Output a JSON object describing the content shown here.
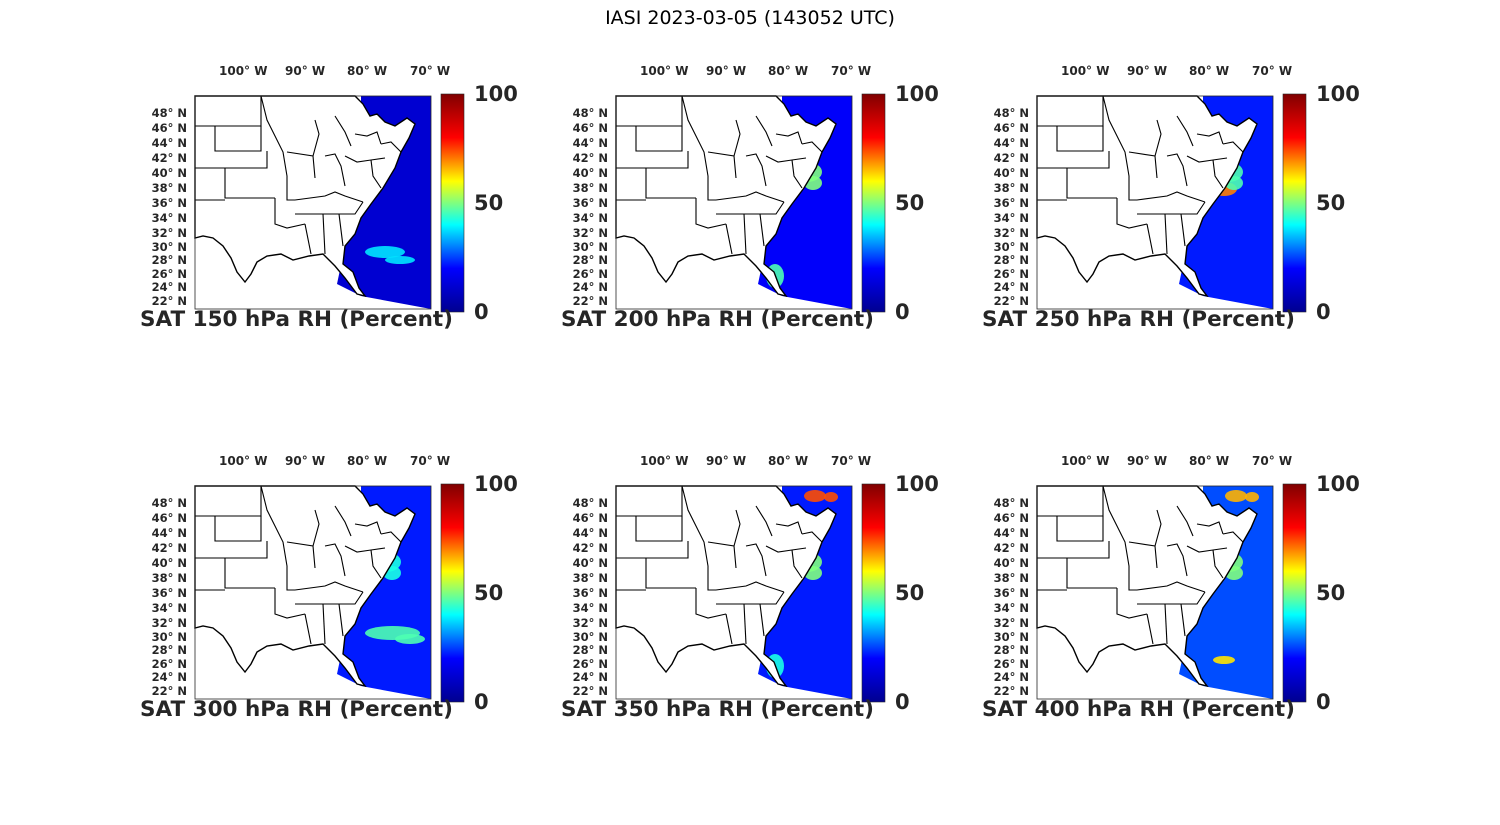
{
  "figure": {
    "title": "IASI 2023-03-05 (143052 UTC)",
    "lon_ticks": [
      "100° W",
      "90° W",
      "80° W",
      "70° W"
    ],
    "lat_ticks": [
      "48° N",
      "46° N",
      "44° N",
      "42° N",
      "40° N",
      "38° N",
      "36° N",
      "34° N",
      "32° N",
      "30° N",
      "28° N",
      "26° N",
      "24° N",
      "22° N"
    ],
    "colorbar": {
      "ticks": [
        "100",
        "50",
        "0"
      ],
      "range": [
        0,
        100
      ],
      "colormap": "jet",
      "colors": [
        "#00008f",
        "#0000ff",
        "#00ffff",
        "#ffff00",
        "#ff0000",
        "#800000"
      ]
    },
    "land_color": "#ffffff",
    "border_color": "#000000"
  },
  "panels": [
    {
      "caption": "SAT 150 hPa RH (Percent)",
      "level_hpa": 150,
      "dominant_rh_pct": 8,
      "moist_features": [
        {
          "region": "southeast coast offshore",
          "rh_pct": 35
        }
      ]
    },
    {
      "caption": "SAT 200 hPa RH (Percent)",
      "level_hpa": 200,
      "dominant_rh_pct": 12,
      "moist_features": [
        {
          "region": "mid-atlantic",
          "rh_pct": 50
        },
        {
          "region": "florida",
          "rh_pct": 45
        }
      ]
    },
    {
      "caption": "SAT 250 hPa RH (Percent)",
      "level_hpa": 250,
      "dominant_rh_pct": 15,
      "moist_features": [
        {
          "region": "virginia",
          "rh_pct": 75
        },
        {
          "region": "mid-atlantic",
          "rh_pct": 45
        }
      ]
    },
    {
      "caption": "SAT 300 hPa RH (Percent)",
      "level_hpa": 300,
      "dominant_rh_pct": 15,
      "moist_features": [
        {
          "region": "southeast offshore band",
          "rh_pct": 45
        },
        {
          "region": "mid-atlantic",
          "rh_pct": 40
        }
      ]
    },
    {
      "caption": "SAT 350 hPa RH (Percent)",
      "level_hpa": 350,
      "dominant_rh_pct": 15,
      "moist_features": [
        {
          "region": "quebec north",
          "rh_pct": 80
        },
        {
          "region": "mid-atlantic",
          "rh_pct": 50
        },
        {
          "region": "florida",
          "rh_pct": 40
        }
      ]
    },
    {
      "caption": "SAT 400 hPa RH (Percent)",
      "level_hpa": 400,
      "dominant_rh_pct": 20,
      "moist_features": [
        {
          "region": "quebec north",
          "rh_pct": 70
        },
        {
          "region": "mid-atlantic",
          "rh_pct": 50
        },
        {
          "region": "bahamas",
          "rh_pct": 65
        }
      ]
    }
  ]
}
